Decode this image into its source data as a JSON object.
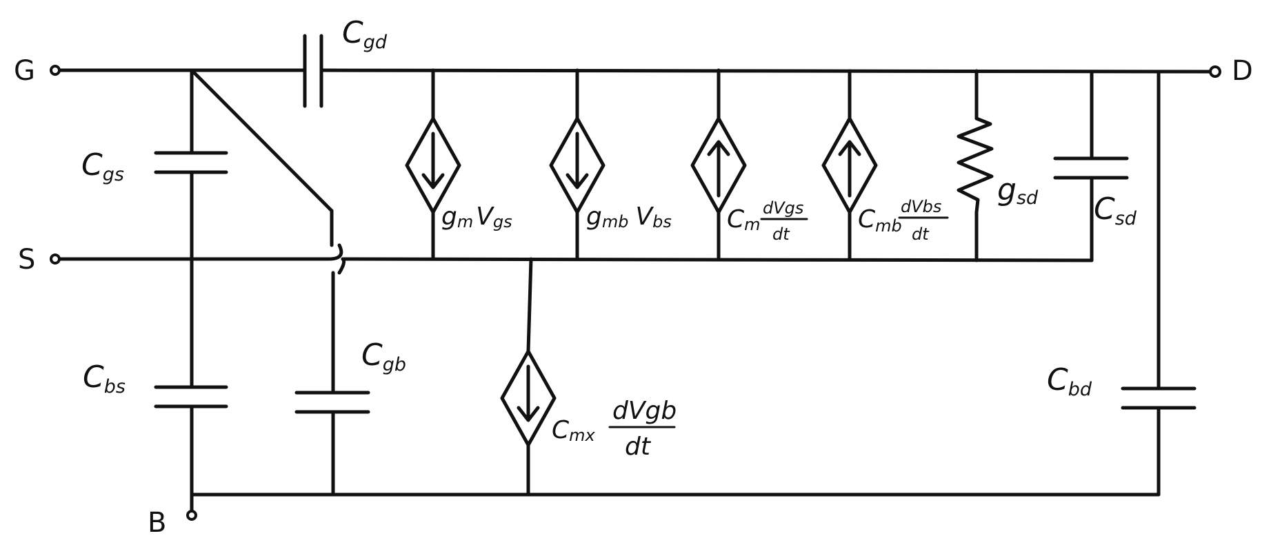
{
  "terminals": {
    "gate": "G",
    "drain": "D",
    "source": "S",
    "bulk": "B"
  },
  "capacitors": {
    "cgd": {
      "main": "C",
      "sub": "gd"
    },
    "cgs": {
      "main": "C",
      "sub": "gs"
    },
    "cbs": {
      "main": "C",
      "sub": "bs"
    },
    "cgb": {
      "main": "C",
      "sub": "gb"
    },
    "csd": {
      "main": "C",
      "sub": "sd"
    },
    "cbd": {
      "main": "C",
      "sub": "bd"
    }
  },
  "conductance": {
    "gsd": {
      "main": "g",
      "sub": "sd"
    }
  },
  "sources": {
    "gm": {
      "coef": "g",
      "coef_sub": "m",
      "var": "V",
      "var_sub": "gs"
    },
    "gmb": {
      "coef": "g",
      "coef_sub": "mb",
      "var": "V",
      "var_sub": "bs"
    },
    "cm": {
      "coef": "C",
      "coef_sub": "m",
      "num": "dVgs",
      "den": "dt"
    },
    "cmb": {
      "coef": "C",
      "coef_sub": "mb",
      "num": "dVbs",
      "den": "dt"
    },
    "cmx": {
      "coef": "C",
      "coef_sub": "mx",
      "num": "dVgb",
      "den": "dt"
    }
  }
}
